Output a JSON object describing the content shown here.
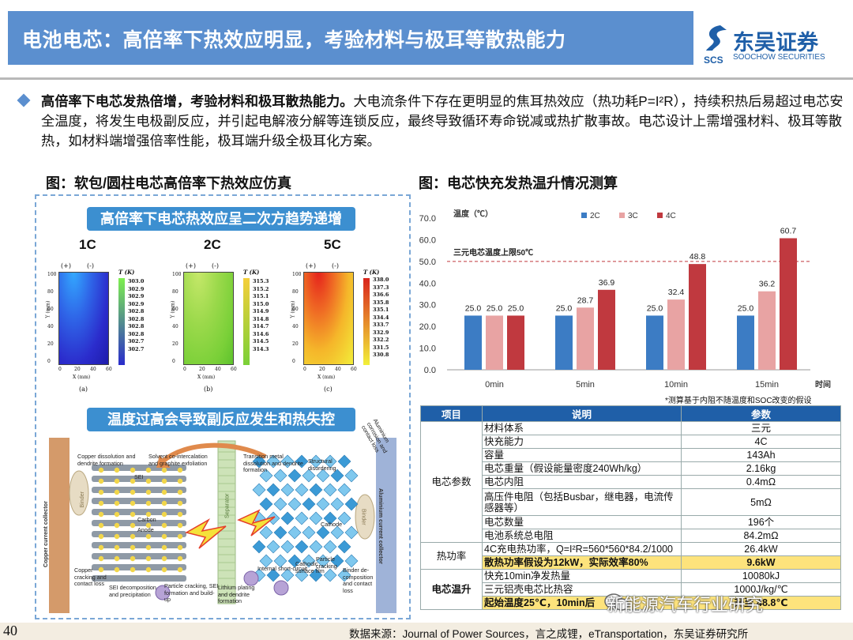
{
  "header": {
    "title": "电池电芯：高倍率下热效应明显，考验材料与极耳等散热能力",
    "logo_cn": "东吴证券",
    "logo_en": "SOOCHOW SECURITIES",
    "logo_mark_text": "SCS"
  },
  "intro": {
    "bold": "高倍率下电芯发热倍增，考验材料和极耳散热能力。",
    "text": "大电流条件下存在更明显的焦耳热效应（热功耗P=I²R），持续积热后易超过电芯安全温度，将发生电极副反应，并引起电解液分解等连锁反应，最终导致循环寿命锐减或热扩散事故。电芯设计上需增强材料、极耳等散热，如材料端增强倍率性能，极耳端升级全极耳化方案。"
  },
  "left_figure": {
    "caption": "图：软包/圆柱电芯高倍率下热效应仿真",
    "banner_top": "高倍率下电芯热效应呈二次方趋势递增",
    "banner_bottom": "温度过高会导致副反应发生和热失控",
    "panels": [
      {
        "rate": "1C",
        "tag": "(a)",
        "unit": "T (K)",
        "values": [
          "303.0",
          "302.9",
          "302.9",
          "302.9",
          "302.8",
          "302.8",
          "302.8",
          "302.8",
          "302.7",
          "302.7"
        ]
      },
      {
        "rate": "2C",
        "tag": "(b)",
        "unit": "T (K)",
        "values": [
          "315.3",
          "315.2",
          "315.1",
          "315.0",
          "314.9",
          "314.8",
          "314.7",
          "314.6",
          "314.5",
          "314.3"
        ]
      },
      {
        "rate": "5C",
        "tag": "(c)",
        "unit": "T (K)",
        "values": [
          "338.0",
          "337.3",
          "336.6",
          "335.8",
          "335.1",
          "334.4",
          "333.7",
          "332.9",
          "332.2",
          "331.5",
          "330.8"
        ]
      }
    ],
    "axis": {
      "x": "X (mm)",
      "y": "Y (mm)",
      "y_ticks": [
        "100",
        "80",
        "60",
        "40",
        "20",
        "0"
      ],
      "x_ticks": [
        "0",
        "20",
        "40",
        "60"
      ],
      "plus": "(+)",
      "minus": "(-)"
    },
    "diagram_labels": {
      "copper_collector": "Copper current collector",
      "aluminium_collector": "Aluminium current collector",
      "binder_left": "Binder",
      "binder_right": "Binder",
      "sei": "SEI",
      "carbon": "Carbon",
      "anode": "Anode",
      "separator": "Separator",
      "cathode": "Cathode",
      "copper_dissolution": "Copper dissolution and dendrite formation",
      "solvent": "Solvent co-intercalation and graphite exfoliation",
      "transition_metal": "Transition metal dissolution and dendrite formation",
      "structural": "Structural disordering",
      "aluminium_corrosion": "Aluminium corrosion and contact loss",
      "copper_cracking": "Copper cracking and contact loss",
      "sei_decomp": "SEI decomposition and precipitation",
      "particle_cracking_sei": "Particle cracking, SEI formation and build-up",
      "lithium_plating": "Lithium plating and dendrite formation",
      "internal_short": "Internal short-circuit",
      "cathodic_film": "Cathodic surface film",
      "particle_cracking": "Particle cracking",
      "binder_decomp": "Binder de-composition and contact loss"
    }
  },
  "right_figure": {
    "caption": "图：电芯快充发热温升情况测算",
    "note": "*测算基于内阻不随温度和SOC改变的假设"
  },
  "chart_data": {
    "type": "bar",
    "categories": [
      "0min",
      "5min",
      "10min",
      "15min"
    ],
    "series": [
      {
        "name": "2C",
        "color": "#3c7cc4",
        "values": [
          25.0,
          25.0,
          25.0,
          25.0
        ]
      },
      {
        "name": "3C",
        "color": "#e8a3a3",
        "values": [
          25.0,
          28.7,
          32.4,
          36.2
        ]
      },
      {
        "name": "4C",
        "color": "#c0393f",
        "values": [
          25.0,
          36.9,
          48.8,
          60.7
        ]
      }
    ],
    "ylabel": "温度（℃）",
    "xlabel": "时间",
    "ylim": [
      0,
      70
    ],
    "yticks": [
      "0.0",
      "10.0",
      "20.0",
      "30.0",
      "40.0",
      "50.0",
      "60.0",
      "70.0"
    ],
    "threshold": {
      "value": 50,
      "label": "三元电芯温度上限50℃",
      "color": "#c0393f"
    },
    "legend_position": "top",
    "grid": false
  },
  "table": {
    "headers": [
      "项目",
      "说明",
      "参数"
    ],
    "groups": [
      {
        "name": "电芯参数",
        "rows": [
          [
            "材料体系",
            "三元"
          ],
          [
            "快充能力",
            "4C"
          ],
          [
            "容量",
            "143Ah"
          ],
          [
            "电芯重量（假设能量密度240Wh/kg）",
            "2.16kg"
          ],
          [
            "电芯内阻",
            "0.4mΩ"
          ],
          [
            "高压件电阻（包括Busbar，继电器，电流传感器等）",
            "5mΩ"
          ],
          [
            "电芯数量",
            "196个"
          ],
          [
            "电池系统总电阻",
            "84.2mΩ"
          ]
        ]
      },
      {
        "name": "热功率",
        "rows": [
          [
            "4C充电热功率，Q=I²R=560*560*84.2/1000",
            "26.4kW"
          ],
          [
            "散热功率假设为12kW，实际效率80%",
            "9.6kW"
          ]
        ]
      },
      {
        "name": "电芯温升",
        "rows": [
          [
            "快充10min净发热量",
            "10080kJ"
          ],
          [
            "三元铝壳电芯比热容",
            "1000J/kg/℃"
          ],
          [
            "起始温度25℃，10min后",
            "升至 48.8℃"
          ]
        ]
      }
    ]
  },
  "footer": {
    "page": "40",
    "source": "数据来源：Journal of Power Sources，言之成锂，eTransportation，东吴证券研究所",
    "watermark": "新能源汽车行业研究"
  },
  "colors": {
    "header_bg": "#5b8fcf",
    "brand": "#1f5fa8",
    "banner": "#3c8fd0",
    "highlight": "#fde37c"
  }
}
